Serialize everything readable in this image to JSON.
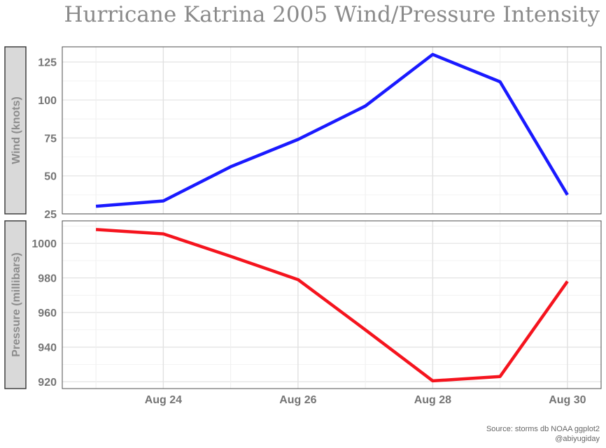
{
  "chart_data": {
    "type": "line",
    "title": "Hurricane Katrina 2005 Wind/Pressure Intensity",
    "caption": [
      "Source: storms db NOAA ggplot2",
      "@abiyugiday"
    ],
    "x": [
      "2005-08-23",
      "2005-08-24",
      "2005-08-25",
      "2005-08-26",
      "2005-08-27",
      "2005-08-28",
      "2005-08-29",
      "2005-08-30"
    ],
    "x_ticks": [
      "Aug 24",
      "Aug 26",
      "Aug 28",
      "Aug 30"
    ],
    "grid": true,
    "panels": [
      {
        "strip_label": "Wind (knots)",
        "ylim": [
          25,
          135
        ],
        "yticks": [
          "25",
          "50",
          "75",
          "100",
          "125"
        ],
        "series": [
          {
            "color": "#1a1aff",
            "values": [
              30,
              33.5,
              56,
              74,
              96,
              130,
              112,
              37.5
            ]
          }
        ]
      },
      {
        "strip_label": "Pressure (millibars)",
        "ylim": [
          916,
          1013
        ],
        "yticks": [
          "920",
          "940",
          "960",
          "980",
          "1000"
        ],
        "series": [
          {
            "color": "#f5141e",
            "values": [
              1008,
              1005.5,
              992.5,
              979,
              950,
              920.5,
              923,
              978
            ]
          }
        ]
      }
    ]
  }
}
